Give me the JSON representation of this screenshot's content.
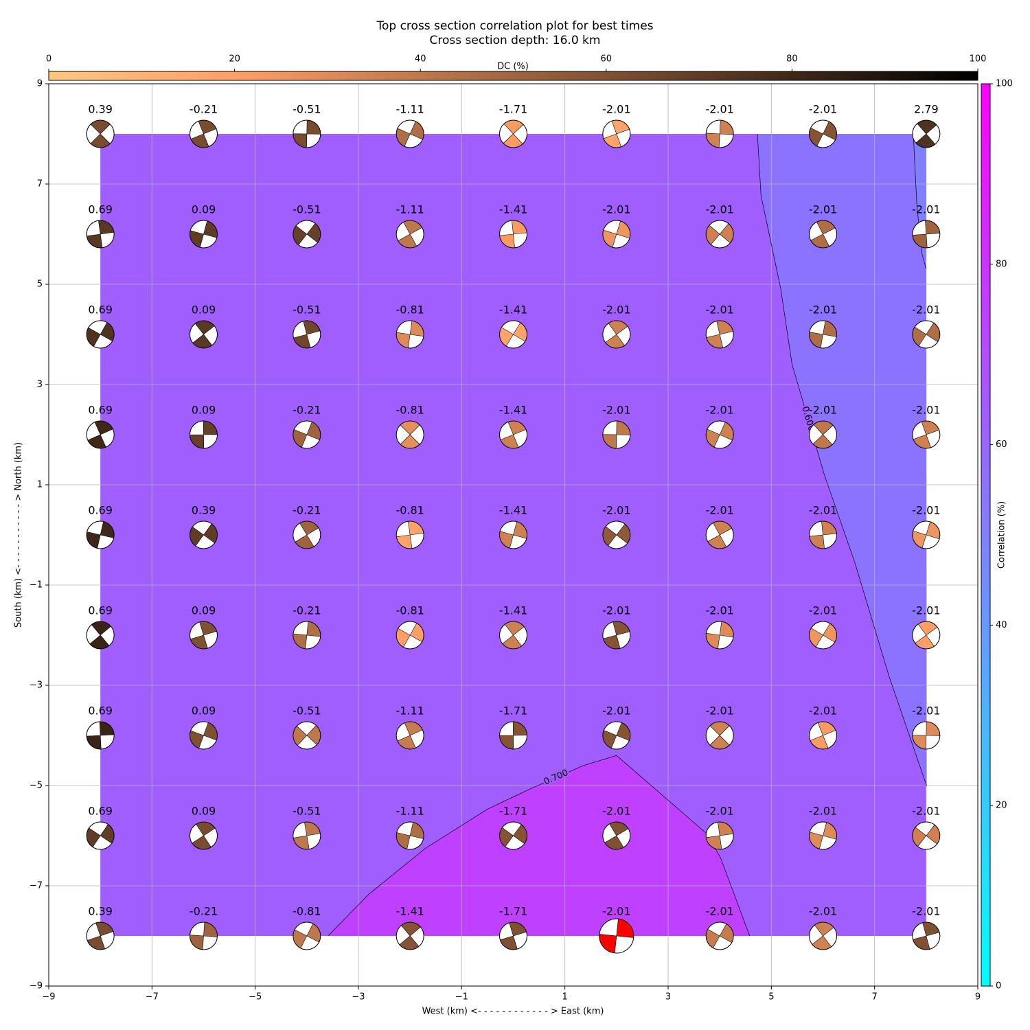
{
  "chart_data": {
    "type": "contour",
    "title": "Top cross section correlation plot for best times",
    "subtitle": "Cross section depth: 16.0 km",
    "xlabel": "West (km) <- - - - - - - - - - - - > East (km)",
    "ylabel": "South (km) <- - - - - - - - - - - > North (km)",
    "xlim": [
      -9,
      9
    ],
    "ylim": [
      -9,
      9
    ],
    "xticks": [
      {
        "value": -9,
        "label": "−9"
      },
      {
        "value": -7,
        "label": "−7"
      },
      {
        "value": -5,
        "label": "−5"
      },
      {
        "value": -3,
        "label": "−3"
      },
      {
        "value": -1,
        "label": "−1"
      },
      1,
      3,
      5,
      7,
      9
    ],
    "yticks": [
      {
        "value": -9,
        "label": "−9"
      },
      {
        "value": -7,
        "label": "−7"
      },
      {
        "value": -5,
        "label": "−5"
      },
      {
        "value": -3,
        "label": "−3"
      },
      {
        "value": -1,
        "label": "−1"
      },
      1,
      3,
      5,
      7,
      9
    ],
    "grid": true,
    "colorbar": {
      "label": "Correlation (%)",
      "cmap": "cool",
      "lim": [
        0,
        100
      ],
      "ticks": [
        0,
        20,
        40,
        60,
        80,
        100
      ]
    },
    "dc_colorbar": {
      "label": "DC (%)",
      "cmap": "copper_r",
      "lim": [
        0,
        100
      ],
      "ticks": [
        0,
        20,
        40,
        60,
        80,
        100
      ]
    },
    "regions": [
      {
        "value": 63,
        "x": [
          -8,
          8,
          8,
          -8
        ],
        "y": [
          -8,
          -8,
          8,
          8
        ]
      },
      {
        "value": 55,
        "x": [
          4.73,
          4.8,
          5.18,
          5.4,
          6.02,
          6.62,
          7.28,
          8.01,
          8,
          7.75
        ],
        "y": [
          8,
          6.77,
          4.92,
          3.41,
          1.22,
          -0.56,
          -2.82,
          -5.01,
          8,
          8
        ]
      },
      {
        "value": 50,
        "x": [
          7.75,
          7.82,
          7.92,
          8,
          8
        ],
        "y": [
          8,
          6.56,
          5.6,
          5.3,
          8
        ]
      },
      {
        "value": 75,
        "x": [
          -3.59,
          -2.79,
          -1.7,
          -0.5,
          0.3,
          1.36,
          2.0,
          3.76,
          4.02,
          4.58
        ],
        "y": [
          -8,
          -7.16,
          -6.25,
          -5.47,
          -5.08,
          -4.6,
          -4.4,
          -5.97,
          -6.45,
          -8
        ]
      }
    ],
    "contours": [
      {
        "label": "0.600",
        "x": [
          4.73,
          4.8,
          5.18,
          5.4,
          6.02,
          6.62,
          7.28,
          8.01,
          null,
          7.75,
          7.82,
          7.92,
          8.0
        ],
        "y": [
          8,
          6.77,
          4.92,
          3.41,
          1.22,
          -0.56,
          -2.82,
          -5.01,
          null,
          8,
          6.56,
          5.6,
          5.3
        ]
      },
      {
        "label": "0.700",
        "x": [
          -3.59,
          -2.79,
          -1.7,
          -0.5,
          0.3,
          1.36,
          2.0,
          3.76,
          4.02,
          4.58
        ],
        "y": [
          -8,
          -7.16,
          -6.25,
          -5.47,
          -5.08,
          -4.6,
          -4.4,
          -5.97,
          -6.45,
          -8
        ]
      }
    ],
    "points": {
      "x": [
        -8,
        -6,
        -4,
        -2,
        0,
        2,
        4,
        6,
        8
      ],
      "y": [
        8,
        6,
        4,
        2,
        0,
        -2,
        -4,
        -6,
        -8
      ],
      "values": [
        [
          0.39,
          -0.21,
          -0.51,
          -1.11,
          -1.71,
          -2.01,
          -2.01,
          -2.01,
          2.79
        ],
        [
          0.69,
          0.09,
          -0.51,
          -1.11,
          -1.41,
          -2.01,
          -2.01,
          -2.01,
          -2.01
        ],
        [
          0.69,
          0.09,
          -0.51,
          -0.81,
          -1.41,
          -2.01,
          -2.01,
          -2.01,
          -2.01
        ],
        [
          0.69,
          0.09,
          -0.21,
          -0.81,
          -1.41,
          -2.01,
          -2.01,
          -2.01,
          -2.01
        ],
        [
          0.69,
          0.39,
          -0.21,
          -0.81,
          -1.41,
          -2.01,
          -2.01,
          -2.01,
          -2.01
        ],
        [
          0.69,
          0.09,
          -0.21,
          -0.81,
          -1.41,
          -2.01,
          -2.01,
          -2.01,
          -2.01
        ],
        [
          0.69,
          0.09,
          -0.51,
          -1.11,
          -1.71,
          -2.01,
          -2.01,
          -2.01,
          -2.01
        ],
        [
          0.69,
          0.09,
          -0.51,
          -1.11,
          -1.71,
          -2.01,
          -2.01,
          -2.01,
          -2.01
        ],
        [
          0.39,
          -0.21,
          -0.81,
          -1.41,
          -1.71,
          -2.01,
          -2.01,
          -2.01,
          -2.01
        ]
      ],
      "dc": [
        [
          62,
          62,
          62,
          45,
          22,
          18,
          35,
          58,
          75
        ],
        [
          72,
          70,
          68,
          40,
          22,
          25,
          35,
          45,
          50
        ],
        [
          75,
          72,
          65,
          30,
          18,
          35,
          35,
          45,
          45
        ],
        [
          80,
          68,
          50,
          28,
          35,
          40,
          35,
          40,
          35
        ],
        [
          80,
          70,
          50,
          18,
          35,
          55,
          35,
          35,
          25
        ],
        [
          82,
          60,
          45,
          20,
          35,
          58,
          30,
          25,
          20
        ],
        [
          82,
          60,
          40,
          38,
          58,
          58,
          35,
          22,
          30
        ],
        [
          70,
          62,
          40,
          45,
          58,
          60,
          35,
          30,
          35
        ],
        [
          62,
          50,
          40,
          58,
          60,
          60,
          38,
          35,
          60
        ]
      ]
    },
    "best": {
      "x": 2,
      "y": -8,
      "color": "#ff0000"
    }
  }
}
